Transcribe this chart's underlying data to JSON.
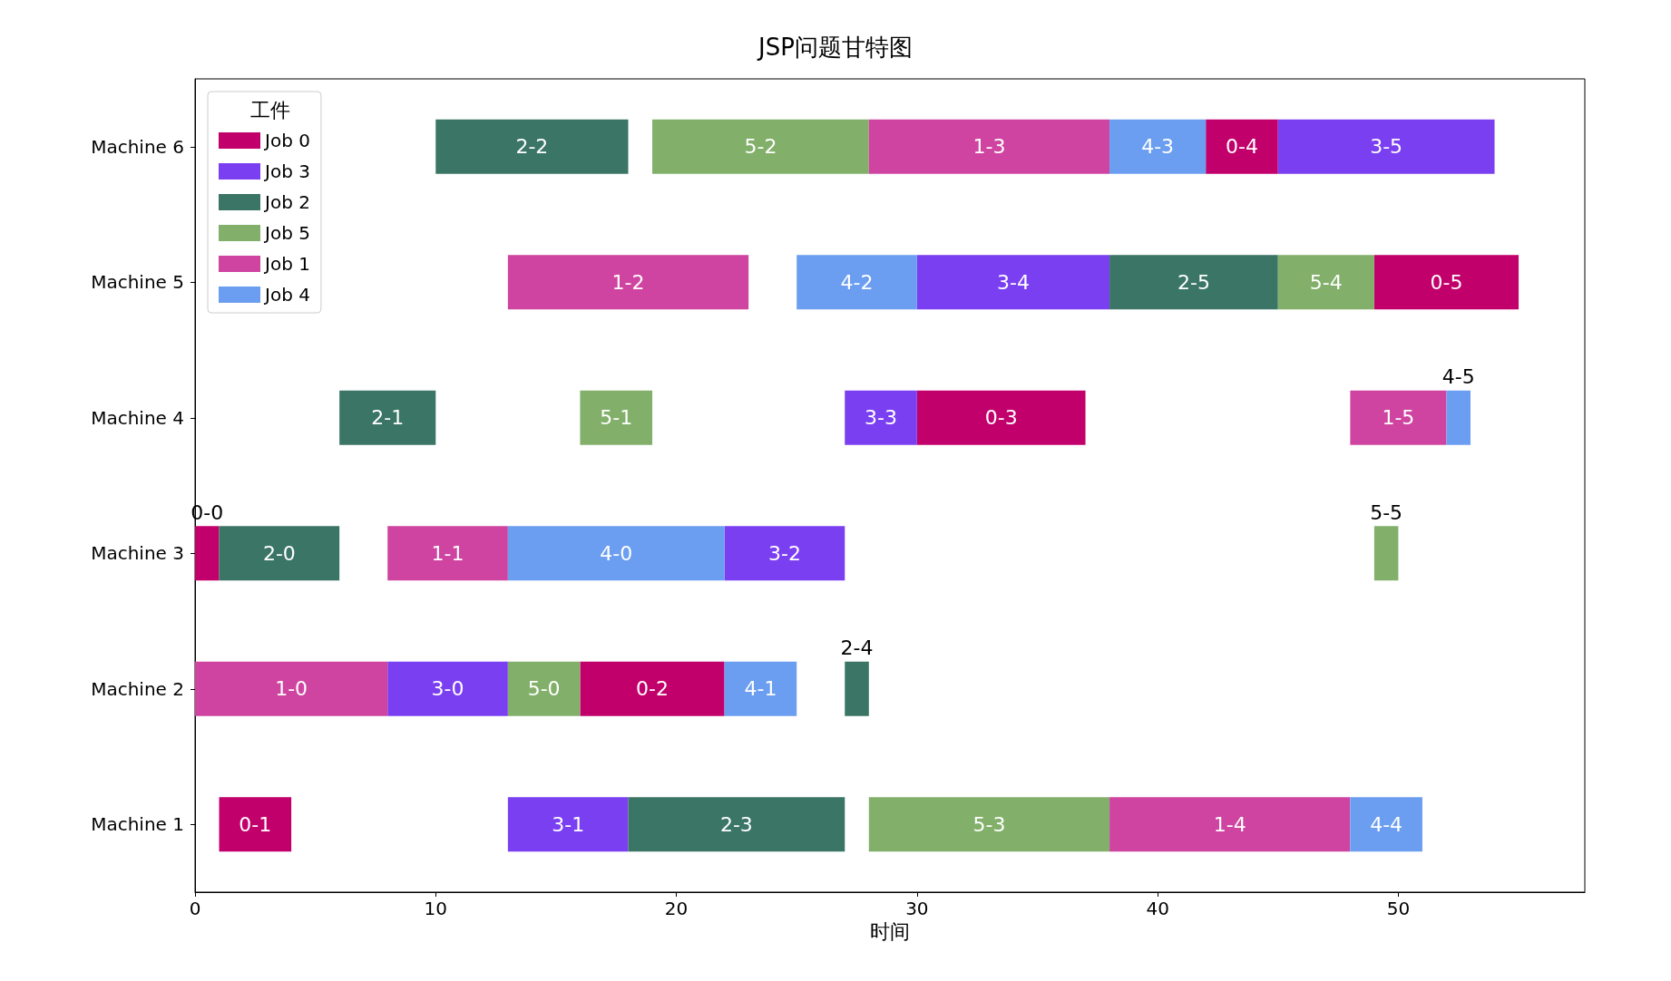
{
  "chart_data": {
    "type": "bar",
    "orientation": "horizontal",
    "title": "JSP问题甘特图",
    "xlabel": "时间",
    "legend_title": "工件",
    "legend": "top left",
    "categories": [
      "Machine 6",
      "Machine 5",
      "Machine 4",
      "Machine 3",
      "Machine 2",
      "Machine 1"
    ],
    "xlim": [
      0,
      57.75
    ],
    "xticks": [
      0,
      10,
      20,
      30,
      40,
      50
    ],
    "grid": false,
    "series": [
      {
        "name": "Job 0",
        "color": "#c2006b",
        "base": [
          42,
          49,
          30,
          0,
          16,
          1
        ],
        "values": [
          3,
          6,
          7,
          1,
          6,
          3
        ],
        "value_labels": [
          "0-4",
          "0-5",
          "0-3",
          "0-0",
          "0-2",
          "0-1"
        ]
      },
      {
        "name": "Job 3",
        "color": "#7b3ff2",
        "base": [
          45,
          30,
          27,
          22,
          8,
          13
        ],
        "values": [
          9,
          8,
          3,
          5,
          5,
          5
        ],
        "value_labels": [
          "3-5",
          "3-4",
          "3-3",
          "3-2",
          "3-0",
          "3-1"
        ]
      },
      {
        "name": "Job 2",
        "color": "#3b7565",
        "base": [
          10,
          38,
          6,
          1,
          27,
          18
        ],
        "values": [
          8,
          7,
          4,
          5,
          1,
          9
        ],
        "value_labels": [
          "2-2",
          "2-5",
          "2-1",
          "2-0",
          "2-4",
          "2-3"
        ]
      },
      {
        "name": "Job 5",
        "color": "#82b06a",
        "base": [
          19,
          45,
          16,
          49,
          13,
          28
        ],
        "values": [
          9,
          4,
          3,
          1,
          3,
          10
        ],
        "value_labels": [
          "5-2",
          "5-4",
          "5-1",
          "5-5",
          "5-0",
          "5-3"
        ]
      },
      {
        "name": "Job 1",
        "color": "#cf44a0",
        "base": [
          28,
          13,
          48,
          8,
          0,
          38
        ],
        "values": [
          10,
          10,
          4,
          5,
          8,
          10
        ],
        "value_labels": [
          "1-3",
          "1-2",
          "1-5",
          "1-1",
          "1-0",
          "1-4"
        ]
      },
      {
        "name": "Job 4",
        "color": "#6b9ef0",
        "base": [
          38,
          25,
          52,
          13,
          22,
          48
        ],
        "values": [
          4,
          5,
          1,
          9,
          3,
          3
        ],
        "value_labels": [
          "4-3",
          "4-2",
          "4-5",
          "4-0",
          "4-1",
          "4-4"
        ]
      }
    ]
  }
}
